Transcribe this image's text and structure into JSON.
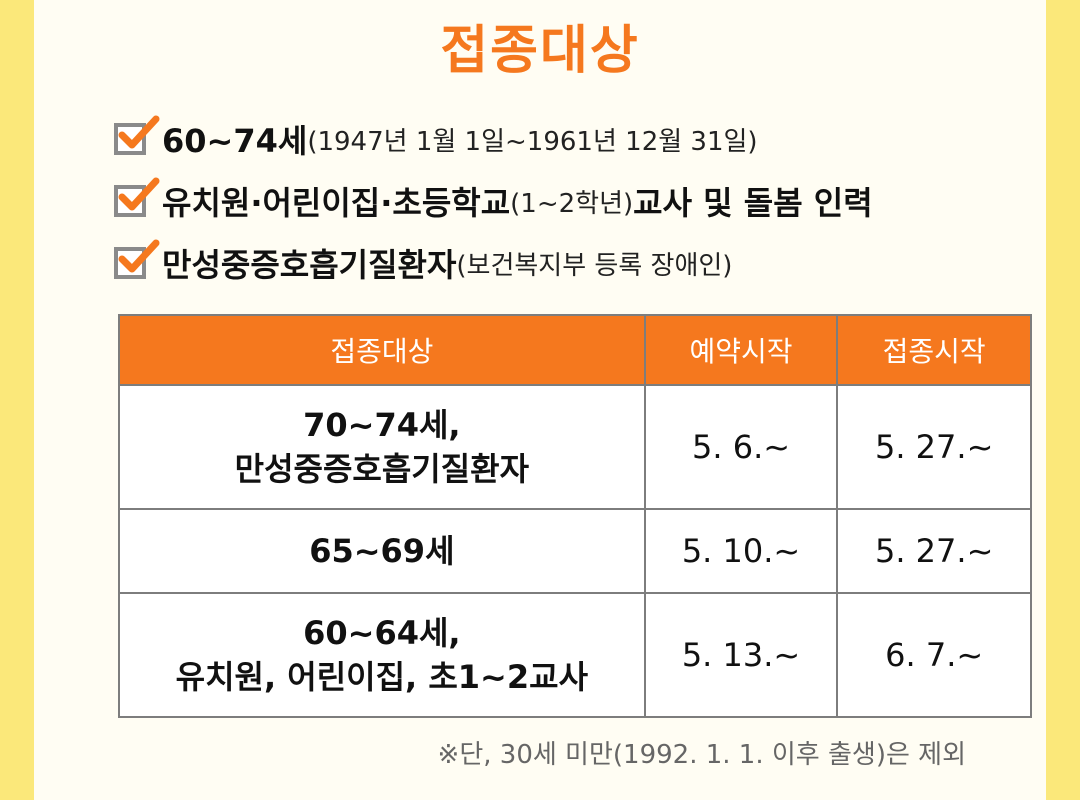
{
  "title": "접종대상",
  "checklist": [
    {
      "main": "60~74세",
      "sub": "(1947년 1월 1일~1961년 12월 31일)",
      "tail": ""
    },
    {
      "main": "유치원·어린이집·초등학교",
      "sub": "(1~2학년)",
      "tail": "교사 및 돌봄 인력"
    },
    {
      "main": "만성중증호흡기질환자",
      "sub": "(보건복지부 등록 장애인)",
      "tail": ""
    }
  ],
  "table": {
    "headers": [
      "접종대상",
      "예약시작",
      "접종시작"
    ],
    "rows": [
      {
        "target_line1": "70~74세,",
        "target_line2": "만성중증호흡기질환자",
        "reservation": "5. 6.~",
        "vaccination": "5. 27.~"
      },
      {
        "target_line1": "65~69세",
        "target_line2": "",
        "reservation": "5. 10.~",
        "vaccination": "5. 27.~"
      },
      {
        "target_line1": "60~64세,",
        "target_line2": "유치원, 어린이집, 초1~2교사",
        "reservation": "5. 13.~",
        "vaccination": "6. 7.~"
      }
    ]
  },
  "note": "※단, 30세 미만(1992. 1. 1. 이후 출생)은 제외",
  "colors": {
    "accent": "#f5781e",
    "background": "#fbe87a",
    "card": "#fffdf3"
  },
  "icons": {
    "check": "checkbox-checked-icon"
  }
}
